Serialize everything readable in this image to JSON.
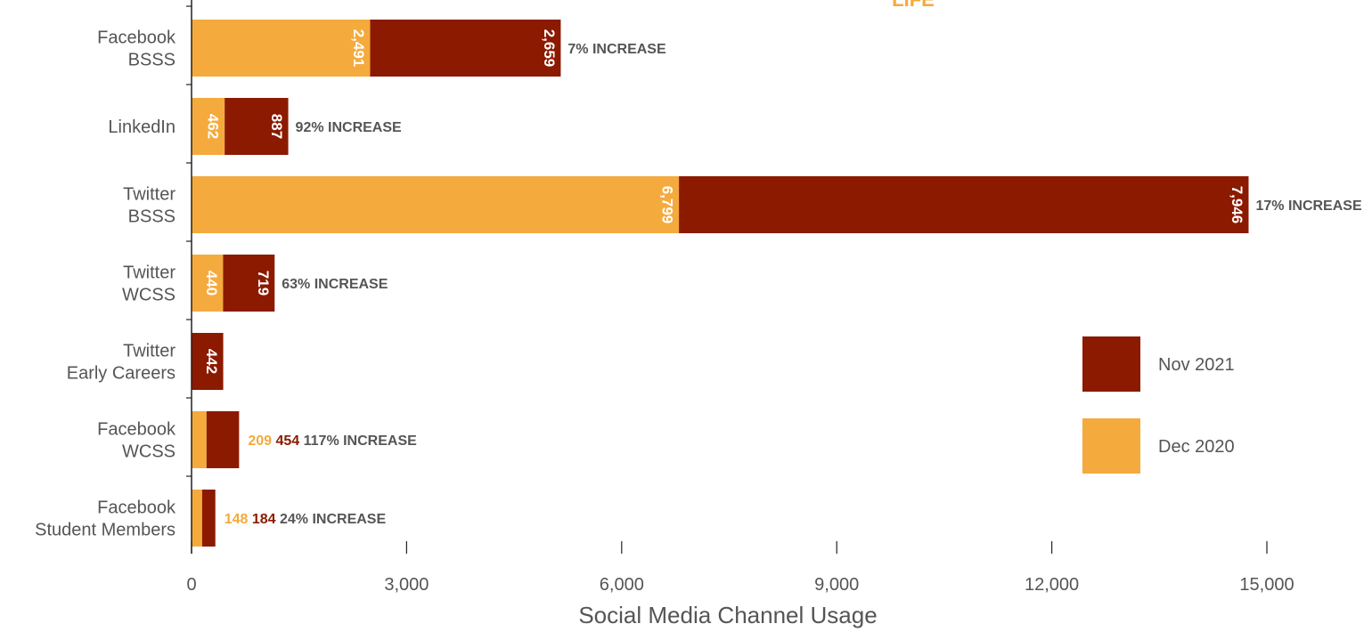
{
  "chart_data": {
    "type": "bar",
    "orientation": "horizontal",
    "stacked": true,
    "title": "LIFE",
    "xlabel": "Social Media Channel Usage",
    "ylabel": "",
    "xlim": [
      0,
      15000
    ],
    "xticks": [
      0,
      3000,
      6000,
      9000,
      12000,
      15000
    ],
    "xtick_labels": [
      "0",
      "3,000",
      "6,000",
      "9,000",
      "12,000",
      "15,000"
    ],
    "categories": [
      [
        "Facebook",
        "BSSS"
      ],
      [
        "LinkedIn"
      ],
      [
        "Twitter",
        "BSSS"
      ],
      [
        "Twitter",
        "WCSS"
      ],
      [
        "Twitter",
        "Early Careers"
      ],
      [
        "Facebook",
        "WCSS"
      ],
      [
        "Facebook",
        "Student Members"
      ]
    ],
    "series": [
      {
        "name": "Dec 2020",
        "color": "#F5AA3D",
        "values": [
          2491,
          462,
          6799,
          440,
          0,
          209,
          148
        ],
        "labels": [
          "2,491",
          "462",
          "6,799",
          "440",
          "",
          "209",
          "148"
        ]
      },
      {
        "name": "Nov 2021",
        "color": "#8B1A00",
        "values": [
          2659,
          887,
          7946,
          719,
          442,
          454,
          184
        ],
        "labels": [
          "2,659",
          "887",
          "7,946",
          "719",
          "442",
          "454",
          "184"
        ]
      }
    ],
    "annotations": [
      "7% INCREASE",
      "92% INCREASE",
      "17% INCREASE",
      "63% INCREASE",
      "",
      "117% INCREASE",
      "24% INCREASE"
    ],
    "label_inside": [
      true,
      true,
      true,
      true,
      true,
      false,
      false
    ],
    "annotation_color": "#555555",
    "legend": {
      "placement": "right",
      "order": [
        "Nov 2021",
        "Dec 2020"
      ]
    },
    "grid": false
  }
}
